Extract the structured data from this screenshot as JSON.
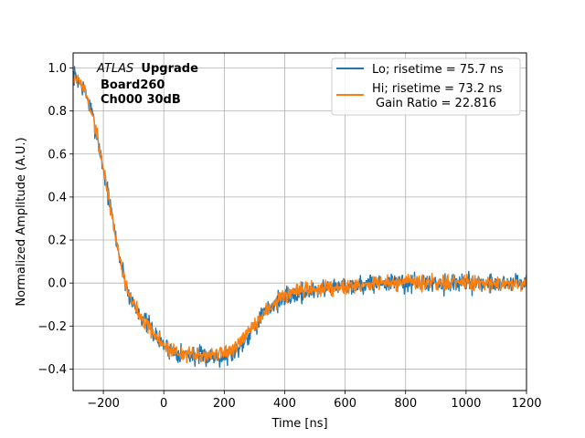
{
  "chart_data": {
    "type": "line",
    "title": "",
    "xlabel": "Time [ns]",
    "ylabel": "Normalized Amplitude (A.U.)",
    "xlim": [
      -300,
      1200
    ],
    "ylim": [
      -0.5,
      1.07
    ],
    "xticks": [
      -200,
      0,
      200,
      400,
      600,
      800,
      1000,
      1200
    ],
    "xtick_labels": [
      "−200",
      "0",
      "200",
      "400",
      "600",
      "800",
      "1000",
      "1200"
    ],
    "yticks": [
      -0.4,
      -0.2,
      0.0,
      0.2,
      0.4,
      0.6,
      0.8,
      1.0
    ],
    "ytick_labels": [
      "−0.4",
      "−0.2",
      "0.0",
      "0.2",
      "0.4",
      "0.6",
      "0.8",
      "1.0"
    ],
    "grid": true,
    "legend_position": "top-right",
    "annotation": {
      "italic_part": "ATLAS",
      "bold_part": "Upgrade",
      "line2": "Board260",
      "line3": "Ch000 30dB"
    },
    "series": [
      {
        "name": "Lo; risetime = 75.7 ns",
        "color": "#1f77b4",
        "noise_amplitude": 0.022,
        "seed": 7,
        "x": [
          -300,
          -280,
          -260,
          -240,
          -220,
          -200,
          -180,
          -160,
          -140,
          -120,
          -100,
          -80,
          -60,
          -40,
          -20,
          0,
          20,
          40,
          60,
          80,
          100,
          120,
          140,
          160,
          180,
          200,
          220,
          240,
          260,
          280,
          300,
          320,
          340,
          360,
          380,
          400,
          450,
          500,
          550,
          600,
          650,
          700,
          800,
          900,
          1000,
          1100,
          1200
        ],
        "y": [
          0.97,
          0.94,
          0.89,
          0.8,
          0.68,
          0.53,
          0.38,
          0.22,
          0.08,
          -0.04,
          -0.1,
          -0.14,
          -0.18,
          -0.22,
          -0.26,
          -0.29,
          -0.31,
          -0.32,
          -0.33,
          -0.33,
          -0.34,
          -0.34,
          -0.34,
          -0.34,
          -0.34,
          -0.34,
          -0.33,
          -0.31,
          -0.28,
          -0.24,
          -0.2,
          -0.16,
          -0.13,
          -0.1,
          -0.08,
          -0.07,
          -0.05,
          -0.03,
          -0.02,
          -0.01,
          -0.01,
          0.0,
          0.0,
          0.0,
          0.0,
          0.0,
          0.0
        ]
      },
      {
        "name": "Hi; risetime = 73.2 ns",
        "name_line2": "Gain Ratio = 22.816",
        "color": "#ff7f0e",
        "noise_amplitude": 0.018,
        "seed": 19,
        "x": [
          -300,
          -280,
          -260,
          -240,
          -220,
          -200,
          -180,
          -160,
          -140,
          -120,
          -100,
          -80,
          -60,
          -40,
          -20,
          0,
          20,
          40,
          60,
          80,
          100,
          120,
          140,
          160,
          180,
          200,
          220,
          240,
          260,
          280,
          300,
          320,
          340,
          360,
          380,
          400,
          450,
          500,
          550,
          600,
          650,
          700,
          800,
          900,
          1000,
          1100,
          1200
        ],
        "y": [
          0.96,
          0.94,
          0.89,
          0.8,
          0.68,
          0.53,
          0.38,
          0.22,
          0.08,
          -0.04,
          -0.1,
          -0.14,
          -0.18,
          -0.22,
          -0.26,
          -0.29,
          -0.31,
          -0.32,
          -0.33,
          -0.33,
          -0.34,
          -0.34,
          -0.33,
          -0.33,
          -0.33,
          -0.32,
          -0.32,
          -0.3,
          -0.27,
          -0.23,
          -0.2,
          -0.16,
          -0.13,
          -0.1,
          -0.08,
          -0.06,
          -0.04,
          -0.03,
          -0.02,
          -0.01,
          -0.01,
          0.0,
          0.0,
          0.0,
          0.0,
          0.0,
          0.0
        ]
      }
    ]
  }
}
